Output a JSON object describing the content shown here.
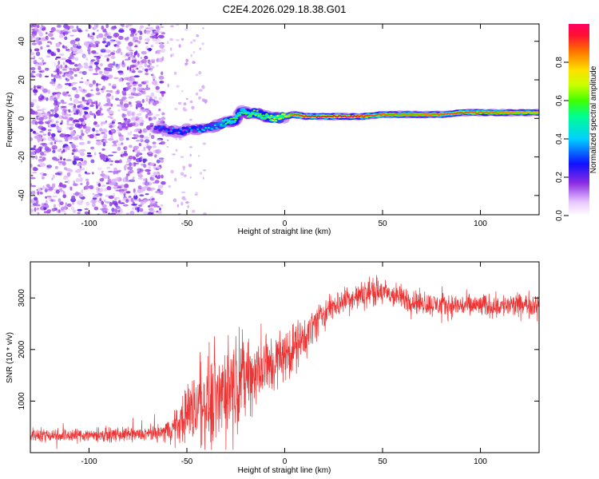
{
  "title": "C2E4.2026.029.18.38.G01",
  "chart_data": [
    {
      "type": "heatmap",
      "name": "spectrogram",
      "xlabel": "Height of straight line (km)",
      "ylabel": "Frequency (Hz)",
      "xlim": [
        -130,
        130
      ],
      "ylim": [
        -50,
        49
      ],
      "xticks": [
        -100,
        -50,
        0,
        50,
        100
      ],
      "yticks": [
        -40,
        -20,
        0,
        20,
        40
      ],
      "colorbar": {
        "label": "Normalized spectral amplitude",
        "range": [
          0.0,
          1.0
        ],
        "ticks": [
          0.0,
          0.2,
          0.4,
          0.6,
          0.8
        ],
        "tick_labels": [
          "0.0",
          "0.2",
          "0.4",
          "0.6",
          "0.8"
        ]
      },
      "noise_region": {
        "x_range": [
          -130,
          -62
        ],
        "mean_amplitude": 0.12
      },
      "signal_track": {
        "x": [
          -66,
          -60,
          -55,
          -50,
          -45,
          -40,
          -35,
          -30,
          -25,
          -22,
          -18,
          -15,
          -10,
          -5,
          0,
          5,
          10,
          20,
          30,
          40,
          50,
          60,
          70,
          80,
          90,
          100,
          110,
          120,
          130
        ],
        "frequency": [
          -5,
          -6,
          -7,
          -6,
          -6,
          -5,
          -4,
          -2,
          -1,
          4,
          2,
          3,
          1,
          0,
          1,
          2,
          1,
          1,
          1,
          1,
          2,
          2,
          2,
          2,
          3,
          3,
          3,
          3,
          3
        ],
        "amplitude": [
          0.3,
          0.35,
          0.4,
          0.35,
          0.4,
          0.42,
          0.45,
          0.55,
          0.6,
          0.55,
          0.6,
          0.65,
          0.6,
          0.7,
          0.72,
          0.9,
          0.92,
          0.95,
          0.97,
          0.92,
          0.88,
          0.85,
          0.85,
          0.88,
          0.9,
          0.88,
          0.85,
          0.82,
          0.8
        ]
      }
    },
    {
      "type": "line",
      "name": "snr",
      "xlabel": "Height of straight line (km)",
      "ylabel": "SNR (10 * v/v)",
      "xlim": [
        -130,
        130
      ],
      "ylim": [
        0,
        3700
      ],
      "xticks": [
        -100,
        -50,
        0,
        50,
        100
      ],
      "yticks": [
        1000,
        2000,
        3000
      ],
      "color": "#ee3333",
      "x": [
        -130,
        -110,
        -90,
        -70,
        -62,
        -55,
        -50,
        -45,
        -40,
        -35,
        -30,
        -25,
        -20,
        -15,
        -10,
        -5,
        0,
        5,
        10,
        15,
        20,
        25,
        30,
        40,
        45,
        50,
        60,
        70,
        80,
        90,
        100,
        110,
        120,
        130
      ],
      "mean": [
        350,
        340,
        345,
        355,
        400,
        520,
        800,
        900,
        1000,
        1100,
        1250,
        1400,
        1500,
        1550,
        1650,
        1750,
        1900,
        2050,
        2200,
        2500,
        2700,
        2850,
        2950,
        3050,
        3150,
        3100,
        3000,
        2900,
        2850,
        2850,
        2850,
        2850,
        2850,
        2900
      ],
      "spread": [
        100,
        100,
        100,
        100,
        120,
        250,
        450,
        550,
        650,
        700,
        700,
        650,
        600,
        550,
        500,
        450,
        400,
        350,
        300,
        250,
        220,
        200,
        200,
        200,
        220,
        200,
        180,
        170,
        170,
        170,
        170,
        170,
        170,
        170
      ]
    }
  ]
}
